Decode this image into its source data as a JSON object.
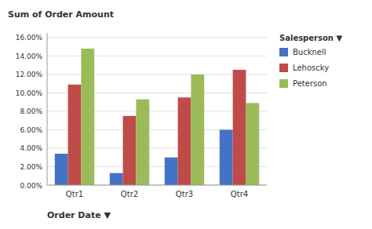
{
  "chart_data": {
    "type": "bar",
    "y_label": "Sum of Order Amount",
    "x_label": "Order Date  ▼",
    "legend_title": "Salesperson  ▼",
    "categories": [
      "Qtr1",
      "Qtr2",
      "Qtr3",
      "Qtr4"
    ],
    "series": [
      {
        "name": "Bucknell",
        "color": "#4472C4",
        "values": [
          0.034,
          0.013,
          0.03,
          0.06
        ]
      },
      {
        "name": "Lehoscky",
        "color": "#BE4B48",
        "values": [
          0.109,
          0.075,
          0.095,
          0.125
        ]
      },
      {
        "name": "Peterson",
        "color": "#9BBB59",
        "values": [
          0.148,
          0.093,
          0.12,
          0.089
        ]
      }
    ],
    "ylim": [
      0,
      0.165
    ],
    "yticks": [
      {
        "value": 0.0,
        "label": "0.00%"
      },
      {
        "value": 0.02,
        "label": "2.00%"
      },
      {
        "value": 0.04,
        "label": "4.00%"
      },
      {
        "value": 0.06,
        "label": "6.00%"
      },
      {
        "value": 0.08,
        "label": "8.00%"
      },
      {
        "value": 0.1,
        "label": "10.00%"
      },
      {
        "value": 0.12,
        "label": "12.00%"
      },
      {
        "value": 0.14,
        "label": "14.00%"
      },
      {
        "value": 0.16,
        "label": "16.00%"
      }
    ],
    "grid": true,
    "legend": "right"
  }
}
